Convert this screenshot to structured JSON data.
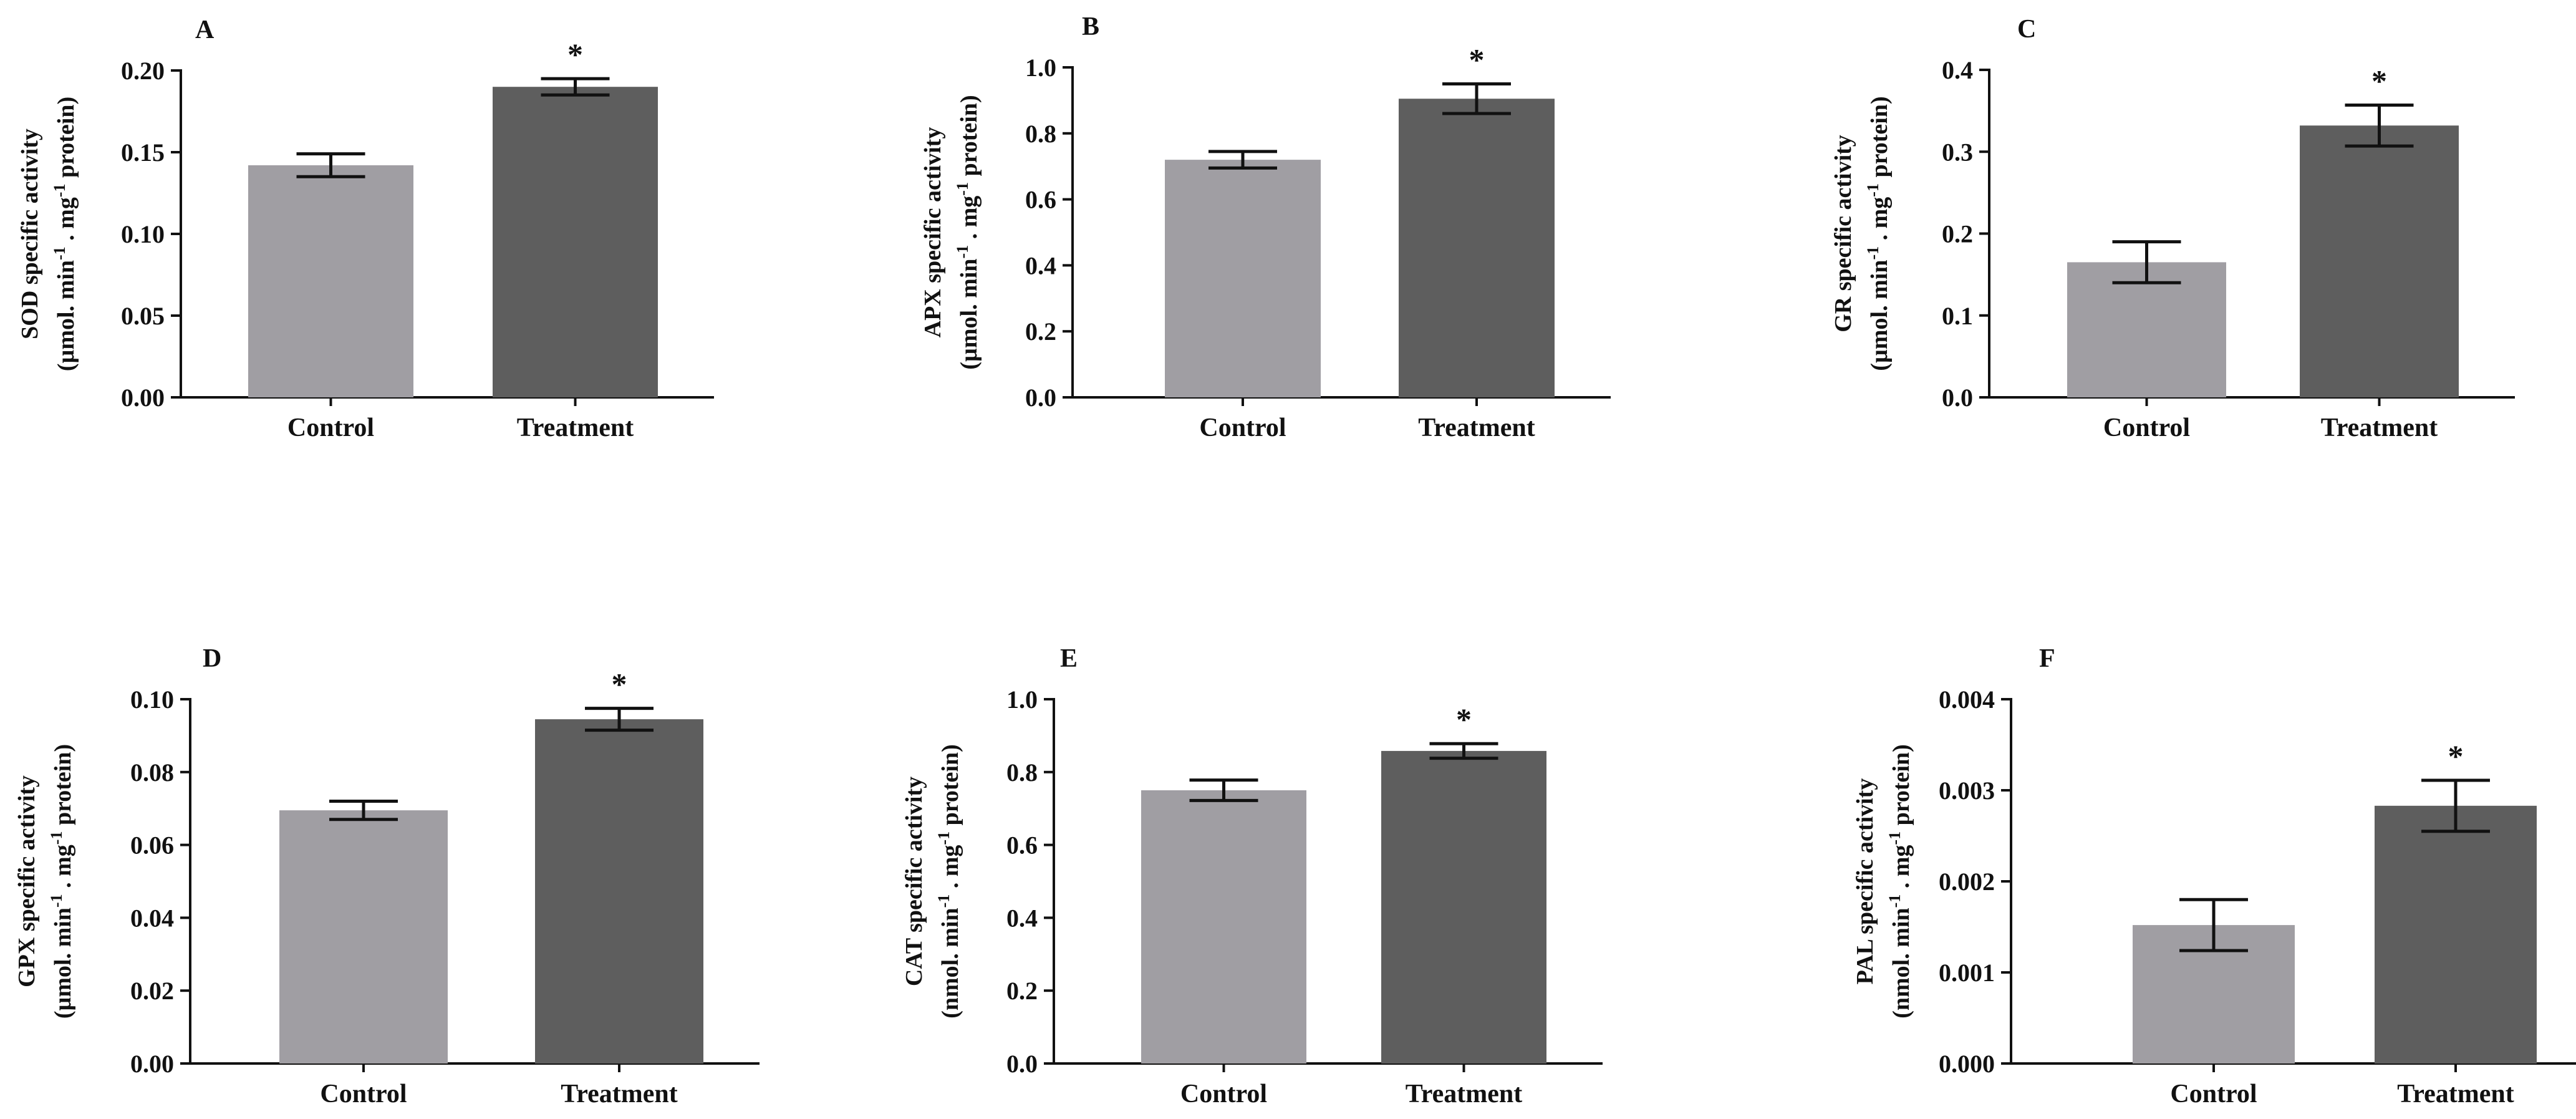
{
  "colors": {
    "control": "#A09EA3",
    "treatment": "#5E5E5E",
    "axis": "#111111"
  },
  "chart_data": [
    {
      "type": "bar",
      "panel": "A",
      "categories": [
        "Control",
        "Treatment"
      ],
      "values": [
        0.142,
        0.19
      ],
      "errors": [
        0.007,
        0.005
      ],
      "significance": [
        "",
        "*"
      ],
      "ylim": [
        0,
        0.2
      ],
      "yticks": [
        0,
        0.05,
        0.1,
        0.15,
        0.2
      ],
      "ytick_labels": [
        "0.00",
        "0.05",
        "0.10",
        "0.15",
        "0.20"
      ],
      "ylabel_top": "SOD specific activity",
      "ylabel_bottom_parts": [
        "(µmol. min",
        "-1",
        " . mg",
        "-1",
        " protein)"
      ]
    },
    {
      "type": "bar",
      "panel": "B",
      "categories": [
        "Control",
        "Treatment"
      ],
      "values": [
        0.72,
        0.905
      ],
      "errors": [
        0.025,
        0.045
      ],
      "significance": [
        "",
        "*"
      ],
      "ylim": [
        0,
        1.0
      ],
      "yticks": [
        0,
        0.2,
        0.4,
        0.6,
        0.8,
        1.0
      ],
      "ytick_labels": [
        "0.0",
        "0.2",
        "0.4",
        "0.6",
        "0.8",
        "1.0"
      ],
      "ylabel_top": "APX specific activity",
      "ylabel_bottom_parts": [
        "(µmol. min",
        "-1",
        " . mg",
        "-1",
        " protein)"
      ]
    },
    {
      "type": "bar",
      "panel": "C",
      "categories": [
        "Control",
        "Treatment"
      ],
      "values": [
        0.165,
        0.332
      ],
      "errors": [
        0.025,
        0.025
      ],
      "significance": [
        "",
        "*"
      ],
      "ylim": [
        0,
        0.4
      ],
      "yticks": [
        0,
        0.1,
        0.2,
        0.3,
        0.4
      ],
      "ytick_labels": [
        "0.0",
        "0.1",
        "0.2",
        "0.3",
        "0.4"
      ],
      "ylabel_top": "GR specific activity",
      "ylabel_bottom_parts": [
        "(µmol. min",
        "-1",
        " . mg",
        "-1",
        " protein)"
      ]
    },
    {
      "type": "bar",
      "panel": "D",
      "categories": [
        "Control",
        "Treatment"
      ],
      "values": [
        0.0695,
        0.0945
      ],
      "errors": [
        0.0025,
        0.003
      ],
      "significance": [
        "",
        "*"
      ],
      "ylim": [
        0,
        0.1
      ],
      "yticks": [
        0,
        0.02,
        0.04,
        0.06,
        0.08,
        0.1
      ],
      "ytick_labels": [
        "0.00",
        "0.02",
        "0.04",
        "0.06",
        "0.08",
        "0.10"
      ],
      "ylabel_top": "GPX specific activity",
      "ylabel_bottom_parts": [
        "(µmol. min",
        "-1",
        " . mg",
        "-1",
        " protein)"
      ]
    },
    {
      "type": "bar",
      "panel": "E",
      "categories": [
        "Control",
        "Treatment"
      ],
      "values": [
        0.75,
        0.858
      ],
      "errors": [
        0.028,
        0.02
      ],
      "significance": [
        "",
        "*"
      ],
      "ylim": [
        0,
        1.0
      ],
      "yticks": [
        0,
        0.2,
        0.4,
        0.6,
        0.8,
        1.0
      ],
      "ytick_labels": [
        "0.0",
        "0.2",
        "0.4",
        "0.6",
        "0.8",
        "1.0"
      ],
      "ylabel_top": "CAT specific activity",
      "ylabel_bottom_parts": [
        "(nmol. min",
        "-1",
        " . mg",
        "-1",
        " protein)"
      ]
    },
    {
      "type": "bar",
      "panel": "F",
      "categories": [
        "Control",
        "Treatment"
      ],
      "values": [
        0.00152,
        0.00283
      ],
      "errors": [
        0.00028,
        0.00028
      ],
      "significance": [
        "",
        "*"
      ],
      "ylim": [
        0,
        0.004
      ],
      "yticks": [
        0,
        0.001,
        0.002,
        0.003,
        0.004
      ],
      "ytick_labels": [
        "0.000",
        "0.001",
        "0.002",
        "0.003",
        "0.004"
      ],
      "ylabel_top": "PAL specific activity",
      "ylabel_bottom_parts": [
        "(nmol. min",
        "-1",
        " . mg",
        "-1",
        " protein)"
      ]
    }
  ]
}
